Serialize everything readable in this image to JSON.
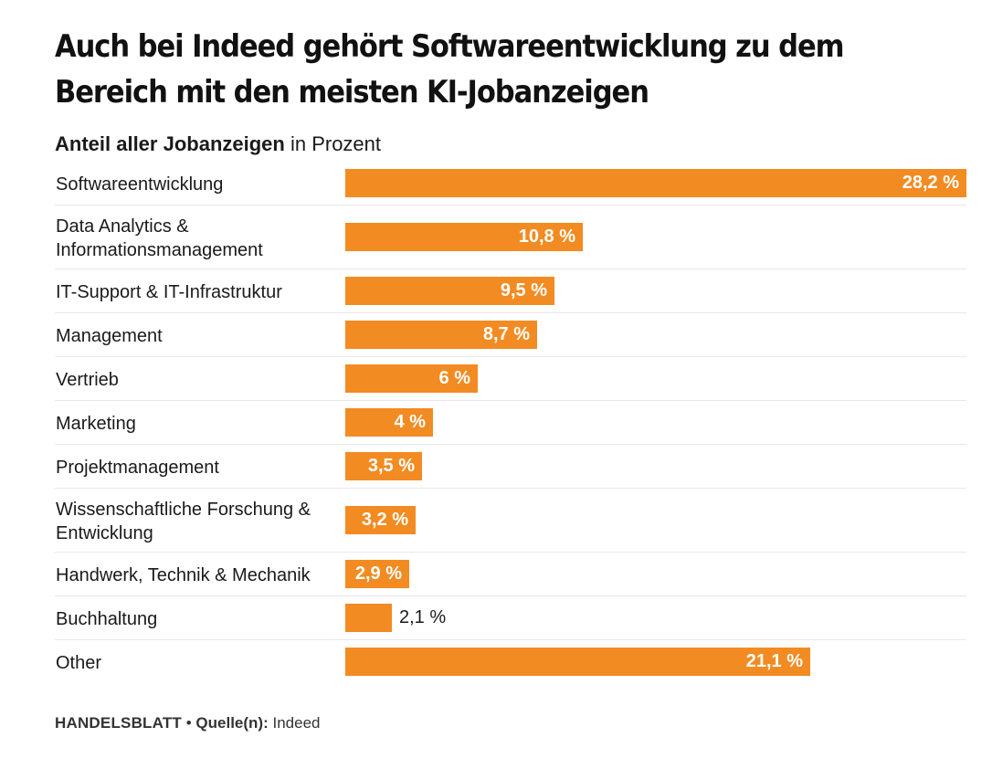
{
  "header": {
    "title": "Auch bei Indeed gehört Softwareentwicklung zu dem Bereich mit den meisten KI-Jobanzeigen",
    "subtitle_strong": "Anteil aller Jobanzeigen",
    "subtitle_rest": " in Prozent"
  },
  "footer": {
    "brand": "HANDELSBLATT",
    "separator": " • ",
    "source_label": "Quelle(n):",
    "source_value": " Indeed"
  },
  "colors": {
    "bar": "#f28b22",
    "value_inside": "#ffffff",
    "value_outside": "#1a1a1a"
  },
  "chart_data": {
    "type": "bar",
    "orientation": "horizontal",
    "title": "Auch bei Indeed gehört Softwareentwicklung zu dem Bereich mit den meisten KI-Jobanzeigen",
    "subtitle": "Anteil aller Jobanzeigen in Prozent",
    "categories": [
      "Softwareentwicklung",
      "Data Analytics & Informationsmanagement",
      "IT-Support & IT-Infrastruktur",
      "Management",
      "Vertrieb",
      "Marketing",
      "Projektmanagement",
      "Wissenschaftliche Forschung & Entwicklung",
      "Handwerk, Technik & Mechanik",
      "Buchhaltung",
      "Other"
    ],
    "category_lines": [
      [
        "Softwareentwicklung"
      ],
      [
        "Data Analytics &",
        "Informationsmanagement"
      ],
      [
        "IT-Support & IT-Infrastruktur"
      ],
      [
        "Management"
      ],
      [
        "Vertrieb"
      ],
      [
        "Marketing"
      ],
      [
        "Projektmanagement"
      ],
      [
        "Wissenschaftliche Forschung &",
        "Entwicklung"
      ],
      [
        "Handwerk, Technik & Mechanik"
      ],
      [
        "Buchhaltung"
      ],
      [
        "Other"
      ]
    ],
    "values": [
      28.2,
      10.8,
      9.5,
      8.7,
      6,
      4,
      3.5,
      3.2,
      2.9,
      2.1,
      21.1
    ],
    "value_labels": [
      "28,2 %",
      "10,8 %",
      "9,5 %",
      "8,7 %",
      "6 %",
      "4 %",
      "3,5 %",
      "3,2 %",
      "2,9 %",
      "2,1 %",
      "21,1 %"
    ],
    "xlim": [
      0,
      28.2
    ],
    "grid": false,
    "legend": "none"
  }
}
